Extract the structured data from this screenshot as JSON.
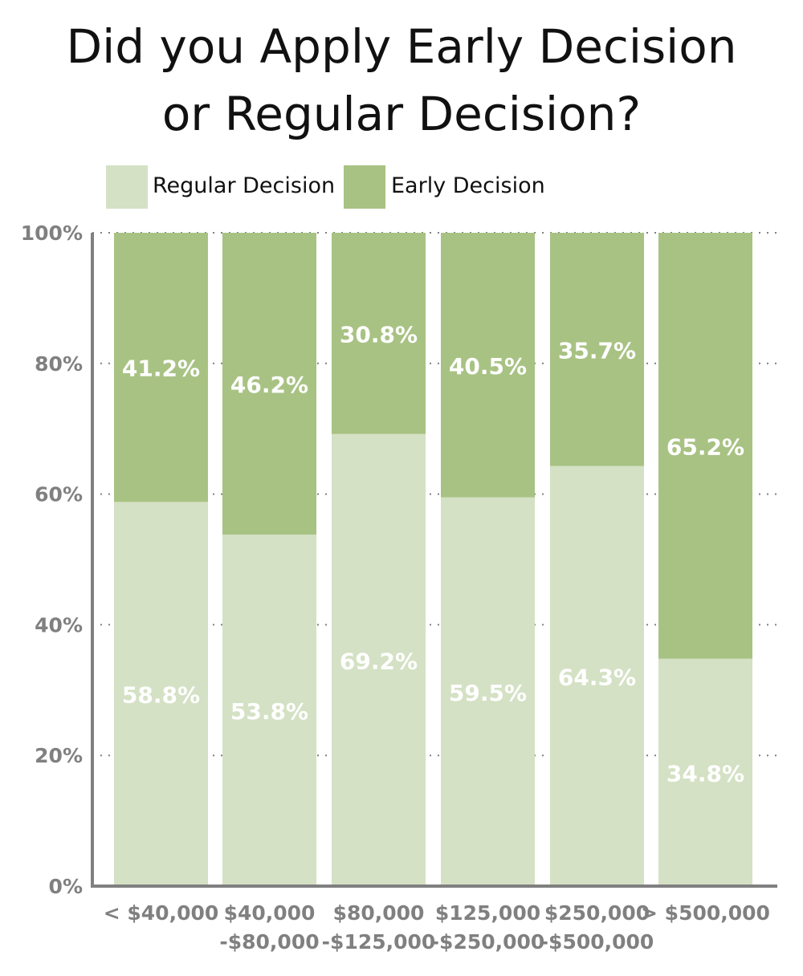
{
  "chart_data": {
    "type": "bar",
    "stacked": true,
    "title_lines": [
      "Did you Apply Early Decision",
      "or Regular Decision?"
    ],
    "categories": [
      [
        "< $40,000"
      ],
      [
        "$40,000",
        "-$80,000"
      ],
      [
        "$80,000",
        "-$125,000"
      ],
      [
        "$125,000",
        "-$250,000"
      ],
      [
        "$250,000",
        "-$500,000"
      ],
      [
        "> $500,000"
      ]
    ],
    "series": [
      {
        "name": "Regular Decision",
        "color": "#d4e1c4",
        "values": [
          58.8,
          53.8,
          69.2,
          59.5,
          64.3,
          34.8
        ],
        "labels": [
          "58.8%",
          "53.8%",
          "69.2%",
          "59.5%",
          "64.3%",
          "34.8%"
        ]
      },
      {
        "name": "Early Decision",
        "color": "#a8c283",
        "values": [
          41.2,
          46.2,
          30.8,
          40.5,
          35.7,
          65.2
        ],
        "labels": [
          "41.2%",
          "46.2%",
          "30.8%",
          "40.5%",
          "35.7%",
          "65.2%"
        ]
      }
    ],
    "ylim": [
      0,
      100
    ],
    "yticks": [
      0,
      20,
      40,
      60,
      80,
      100
    ],
    "ytick_labels": [
      "0%",
      "20%",
      "40%",
      "60%",
      "80%",
      "100%"
    ],
    "grid": "horizontal-dotted",
    "legend_position": "top-left",
    "colors": {
      "axis": "#808080",
      "tick_text": "#808080",
      "data_label": "#ffffff"
    }
  }
}
